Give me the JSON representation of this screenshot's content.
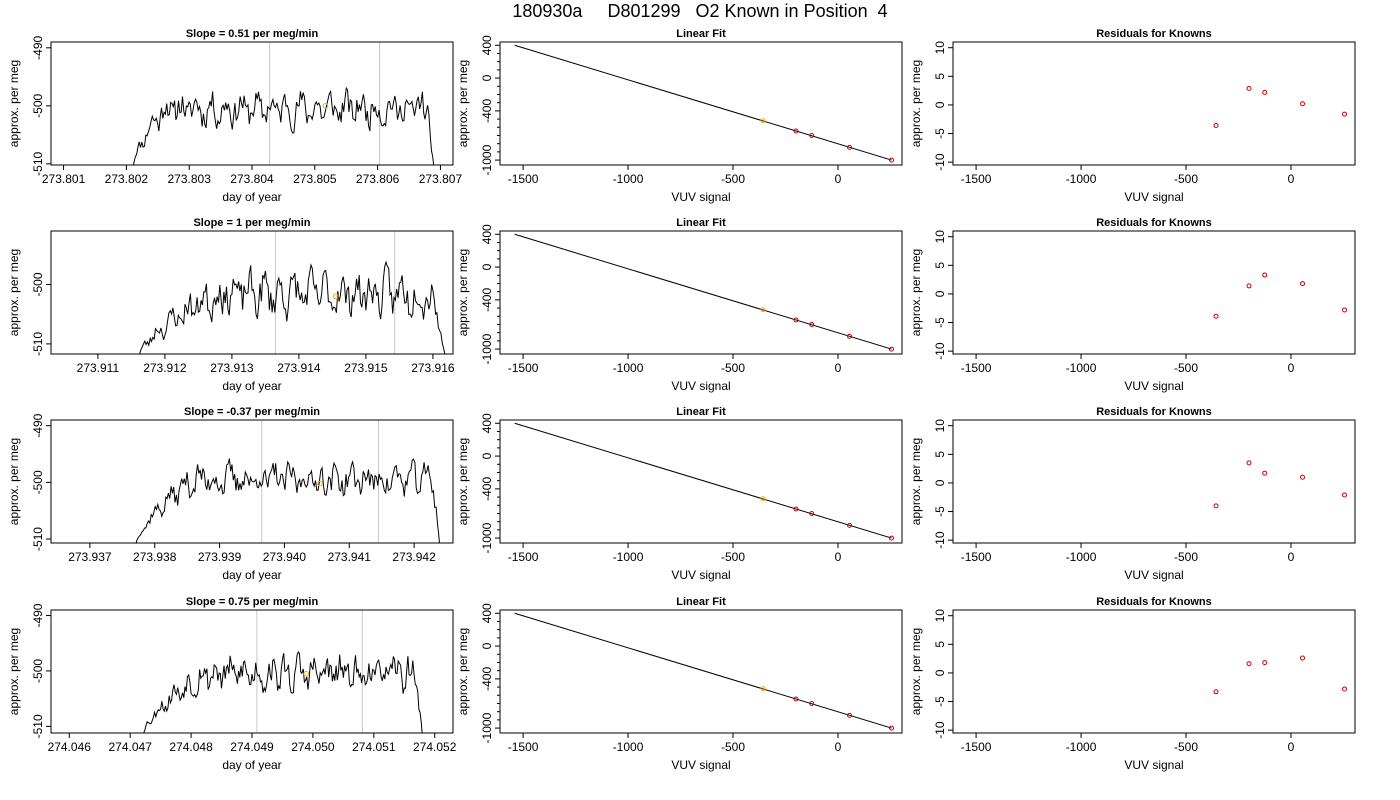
{
  "page": {
    "title": "180930a     D801299   O2 Known in Position  4"
  },
  "colors": {
    "trace": "#000000",
    "vline": "#c8c8c8",
    "current_point": "#ffa500",
    "fit_point": "#cc0000",
    "residual_point": "#cc0000"
  },
  "chart_data": [
    {
      "type": "line",
      "panel": "trace",
      "row": 1,
      "title": "Slope =  0.51  per meg/min",
      "xlabel": "day of year",
      "ylabel": "approx. per meg",
      "xlim": [
        273.8008,
        273.8072
      ],
      "ylim": [
        -510.2,
        -489
      ],
      "xticks": [
        273.801,
        273.802,
        273.803,
        273.804,
        273.805,
        273.806,
        273.807
      ],
      "xtick_labels": [
        "273.801",
        "273.802",
        "273.803",
        "273.804",
        "273.805",
        "273.806",
        "273.807"
      ],
      "yticks": [
        -490,
        -500,
        -510
      ],
      "ytick_labels": [
        "-490",
        "-500",
        "-510"
      ],
      "x_start": 273.8021,
      "x_end": 273.8069,
      "rise_end": 273.8026,
      "fall_start": 273.8068,
      "level": -500.5,
      "amplitude": 2.2,
      "seed": 11,
      "vlines": [
        273.80428,
        273.80603
      ],
      "current": {
        "x": 273.80517,
        "y": -500
      }
    },
    {
      "type": "scatter",
      "panel": "fit",
      "row": 1,
      "title": "Linear Fit",
      "xlabel": "VUV signal",
      "ylabel": "approx. per meg",
      "xlim": [
        -1610,
        305
      ],
      "ylim": [
        -1060,
        440
      ],
      "xticks": [
        -1500,
        -1000,
        -500,
        0
      ],
      "xtick_labels": [
        "-1500",
        "-1000",
        "-500",
        "0"
      ],
      "yticks": [
        400,
        0,
        -400,
        -1000
      ],
      "ytick_labels": [
        "400",
        "0",
        "-400",
        "-1000"
      ],
      "fit_line": [
        [
          -1540,
          400
        ],
        [
          255,
          -1000
        ]
      ],
      "points": [
        [
          -200,
          -645
        ],
        [
          -125,
          -700
        ],
        [
          55,
          -845
        ],
        [
          255,
          -1000
        ]
      ],
      "current": {
        "x": -357,
        "y": -520
      }
    },
    {
      "type": "scatter",
      "panel": "residuals",
      "row": 1,
      "title": "Residuals for Knowns",
      "xlabel": "VUV signal",
      "ylabel": "approx. per meg",
      "xlim": [
        -1610,
        305
      ],
      "ylim": [
        -10.5,
        11
      ],
      "xticks": [
        -1500,
        -1000,
        -500,
        0
      ],
      "xtick_labels": [
        "-1500",
        "-1000",
        "-500",
        "0"
      ],
      "yticks": [
        10,
        5,
        0,
        -5,
        -10
      ],
      "ytick_labels": [
        "10",
        "5",
        "0",
        "-5",
        "-10"
      ],
      "points": [
        [
          -357,
          -3.6
        ],
        [
          -200,
          2.9
        ],
        [
          -125,
          2.2
        ],
        [
          55,
          0.2
        ],
        [
          255,
          -1.6
        ]
      ]
    },
    {
      "type": "line",
      "panel": "trace",
      "row": 2,
      "title": "Slope =  1  per meg/min",
      "xlabel": "day of year",
      "ylabel": "approx. per meg",
      "xlim": [
        273.9103,
        273.9163
      ],
      "ylim": [
        -511.7,
        -491
      ],
      "xticks": [
        273.911,
        273.912,
        273.913,
        273.914,
        273.915,
        273.916
      ],
      "xtick_labels": [
        "273.911",
        "273.912",
        "273.913",
        "273.914",
        "273.915",
        "273.916"
      ],
      "yticks": [
        -500,
        -510
      ],
      "ytick_labels": [
        "-500",
        "-510"
      ],
      "x_start": 273.9116,
      "x_end": 273.9162,
      "rise_end": 273.9128,
      "fall_start": 273.916,
      "level": -501.5,
      "amplitude": 2.8,
      "seed": 23,
      "vlines": [
        273.91365,
        273.91543
      ],
      "current": {
        "x": 273.91455,
        "y": -502
      }
    },
    {
      "type": "scatter",
      "panel": "fit",
      "row": 2,
      "title": "Linear Fit",
      "xlabel": "VUV signal",
      "ylabel": "approx. per meg",
      "xlim": [
        -1610,
        305
      ],
      "ylim": [
        -1060,
        440
      ],
      "xticks": [
        -1500,
        -1000,
        -500,
        0
      ],
      "xtick_labels": [
        "-1500",
        "-1000",
        "-500",
        "0"
      ],
      "yticks": [
        400,
        0,
        -400,
        -1000
      ],
      "ytick_labels": [
        "400",
        "0",
        "-400",
        "-1000"
      ],
      "fit_line": [
        [
          -1540,
          400
        ],
        [
          255,
          -1000
        ]
      ],
      "points": [
        [
          -200,
          -645
        ],
        [
          -125,
          -700
        ],
        [
          55,
          -845
        ],
        [
          255,
          -1000
        ]
      ],
      "current": {
        "x": -357,
        "y": -520
      }
    },
    {
      "type": "scatter",
      "panel": "residuals",
      "row": 2,
      "title": "Residuals for Knowns",
      "xlabel": "VUV signal",
      "ylabel": "approx. per meg",
      "xlim": [
        -1610,
        305
      ],
      "ylim": [
        -10.5,
        11
      ],
      "xticks": [
        -1500,
        -1000,
        -500,
        0
      ],
      "xtick_labels": [
        "-1500",
        "-1000",
        "-500",
        "0"
      ],
      "yticks": [
        10,
        5,
        0,
        -5,
        -10
      ],
      "ytick_labels": [
        "10",
        "5",
        "0",
        "-5",
        "-10"
      ],
      "points": [
        [
          -357,
          -3.9
        ],
        [
          -200,
          1.4
        ],
        [
          -125,
          3.3
        ],
        [
          55,
          1.8
        ],
        [
          255,
          -2.8
        ]
      ]
    },
    {
      "type": "line",
      "panel": "trace",
      "row": 3,
      "title": "Slope =  -0.37  per meg/min",
      "xlabel": "day of year",
      "ylabel": "approx. per meg",
      "xlim": [
        273.9364,
        273.9426
      ],
      "ylim": [
        -510.7,
        -489
      ],
      "xticks": [
        273.937,
        273.938,
        273.939,
        273.94,
        273.941,
        273.942
      ],
      "xtick_labels": [
        "273.937",
        "273.938",
        "273.939",
        "273.940",
        "273.941",
        "273.942"
      ],
      "yticks": [
        -490,
        -500,
        -510
      ],
      "ytick_labels": [
        "-490",
        "-500",
        "-510"
      ],
      "x_start": 273.9377,
      "x_end": 273.9424,
      "rise_end": 273.9386,
      "fall_start": 273.9423,
      "level": -499.5,
      "amplitude": 2.1,
      "seed": 37,
      "vlines": [
        273.93965,
        273.94145
      ],
      "current": {
        "x": 273.94055,
        "y": -500.2
      }
    },
    {
      "type": "scatter",
      "panel": "fit",
      "row": 3,
      "title": "Linear Fit",
      "xlabel": "VUV signal",
      "ylabel": "approx. per meg",
      "xlim": [
        -1610,
        305
      ],
      "ylim": [
        -1060,
        440
      ],
      "xticks": [
        -1500,
        -1000,
        -500,
        0
      ],
      "xtick_labels": [
        "-1500",
        "-1000",
        "-500",
        "0"
      ],
      "yticks": [
        400,
        0,
        -400,
        -1000
      ],
      "ytick_labels": [
        "400",
        "0",
        "-400",
        "-1000"
      ],
      "fit_line": [
        [
          -1540,
          400
        ],
        [
          255,
          -1000
        ]
      ],
      "points": [
        [
          -200,
          -645
        ],
        [
          -125,
          -700
        ],
        [
          55,
          -845
        ],
        [
          255,
          -1000
        ]
      ],
      "current": {
        "x": -357,
        "y": -520
      }
    },
    {
      "type": "scatter",
      "panel": "residuals",
      "row": 3,
      "title": "Residuals for Knowns",
      "xlabel": "VUV signal",
      "ylabel": "approx. per meg",
      "xlim": [
        -1610,
        305
      ],
      "ylim": [
        -10.5,
        11
      ],
      "xticks": [
        -1500,
        -1000,
        -500,
        0
      ],
      "xtick_labels": [
        "-1500",
        "-1000",
        "-500",
        "0"
      ],
      "yticks": [
        10,
        5,
        0,
        -5,
        -10
      ],
      "ytick_labels": [
        "10",
        "5",
        "0",
        "-5",
        "-10"
      ],
      "points": [
        [
          -357,
          -4.0
        ],
        [
          -200,
          3.5
        ],
        [
          -125,
          1.7
        ],
        [
          55,
          1.0
        ],
        [
          255,
          -2.1
        ]
      ]
    },
    {
      "type": "line",
      "panel": "trace",
      "row": 4,
      "title": "Slope =  0.75  per meg/min",
      "xlabel": "day of year",
      "ylabel": "approx. per meg",
      "xlim": [
        274.0457,
        274.0523
      ],
      "ylim": [
        -511.2,
        -489
      ],
      "xticks": [
        274.046,
        274.047,
        274.048,
        274.049,
        274.05,
        274.051,
        274.052
      ],
      "xtick_labels": [
        "274.046",
        "274.047",
        "274.048",
        "274.049",
        "274.050",
        "274.051",
        "274.052"
      ],
      "yticks": [
        -490,
        -500,
        -510
      ],
      "ytick_labels": [
        "-490",
        "-500",
        "-510"
      ],
      "x_start": 274.0472,
      "x_end": 274.0518,
      "rise_end": 274.0482,
      "fall_start": 274.0517,
      "level": -500.5,
      "amplitude": 2.4,
      "seed": 53,
      "vlines": [
        274.04908,
        274.05081
      ],
      "current": {
        "x": 274.04989,
        "y": -500.5
      }
    },
    {
      "type": "scatter",
      "panel": "fit",
      "row": 4,
      "title": "Linear Fit",
      "xlabel": "VUV signal",
      "ylabel": "approx. per meg",
      "xlim": [
        -1610,
        305
      ],
      "ylim": [
        -1060,
        440
      ],
      "xticks": [
        -1500,
        -1000,
        -500,
        0
      ],
      "xtick_labels": [
        "-1500",
        "-1000",
        "-500",
        "0"
      ],
      "yticks": [
        400,
        0,
        -400,
        -1000
      ],
      "ytick_labels": [
        "400",
        "0",
        "-400",
        "-1000"
      ],
      "fit_line": [
        [
          -1540,
          400
        ],
        [
          255,
          -1000
        ]
      ],
      "points": [
        [
          -200,
          -645
        ],
        [
          -125,
          -700
        ],
        [
          55,
          -845
        ],
        [
          255,
          -1000
        ]
      ],
      "current": {
        "x": -357,
        "y": -520
      }
    },
    {
      "type": "scatter",
      "panel": "residuals",
      "row": 4,
      "title": "Residuals for Knowns",
      "xlabel": "VUV signal",
      "ylabel": "approx. per meg",
      "xlim": [
        -1610,
        305
      ],
      "ylim": [
        -10.5,
        11
      ],
      "xticks": [
        -1500,
        -1000,
        -500,
        0
      ],
      "xtick_labels": [
        "-1500",
        "-1000",
        "-500",
        "0"
      ],
      "yticks": [
        10,
        5,
        0,
        -5,
        -10
      ],
      "ytick_labels": [
        "10",
        "5",
        "0",
        "-5",
        "-10"
      ],
      "points": [
        [
          -357,
          -3.3
        ],
        [
          -200,
          1.6
        ],
        [
          -125,
          1.8
        ],
        [
          55,
          2.6
        ],
        [
          255,
          -2.8
        ]
      ]
    }
  ]
}
